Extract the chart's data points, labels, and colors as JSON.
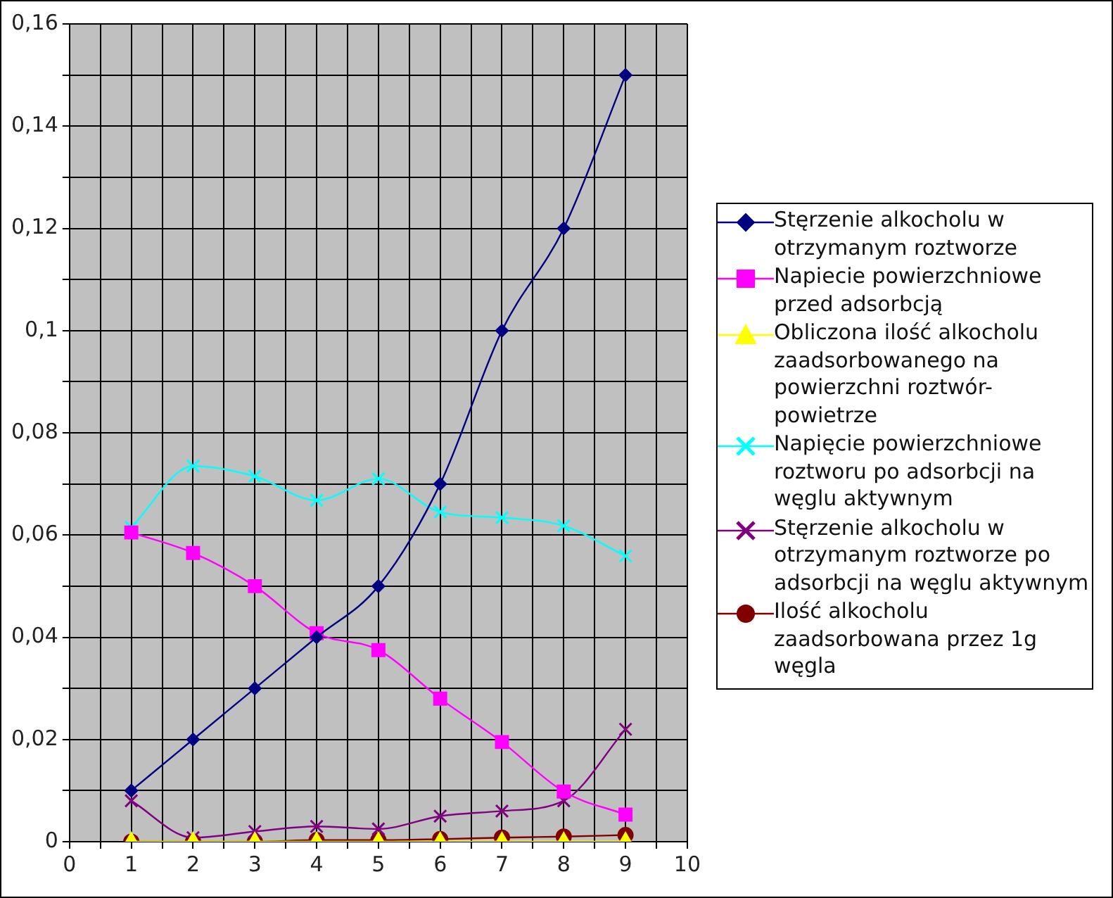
{
  "chart_data": {
    "type": "line",
    "x": [
      1,
      2,
      3,
      4,
      5,
      6,
      7,
      8,
      9
    ],
    "xlim": [
      0,
      10
    ],
    "xticks": [
      0,
      {
        "value": 0.5,
        "label": null
      },
      1,
      {
        "value": 1.5,
        "label": null
      },
      2,
      {
        "value": 2.5,
        "label": null
      },
      3,
      {
        "value": 3.5,
        "label": null
      },
      4,
      {
        "value": 4.5,
        "label": null
      },
      5,
      {
        "value": 5.5,
        "label": null
      },
      6,
      {
        "value": 6.5,
        "label": null
      },
      7,
      {
        "value": 7.5,
        "label": null
      },
      8,
      {
        "value": 8.5,
        "label": null
      },
      9,
      {
        "value": 9.5,
        "label": null
      },
      10
    ],
    "ylim": [
      0,
      0.16
    ],
    "yticks": [
      {
        "value": 0,
        "label": "0"
      },
      {
        "value": 0.01,
        "label": null
      },
      {
        "value": 0.02,
        "label": "0,02"
      },
      {
        "value": 0.03,
        "label": null
      },
      {
        "value": 0.04,
        "label": "0,04"
      },
      {
        "value": 0.05,
        "label": null
      },
      {
        "value": 0.06,
        "label": "0,06"
      },
      {
        "value": 0.07,
        "label": null
      },
      {
        "value": 0.08,
        "label": "0,08"
      },
      {
        "value": 0.09,
        "label": null
      },
      {
        "value": 0.1,
        "label": "0,1"
      },
      {
        "value": 0.11,
        "label": null
      },
      {
        "value": 0.12,
        "label": "0,12"
      },
      {
        "value": 0.13,
        "label": null
      },
      {
        "value": 0.14,
        "label": "0,14"
      },
      {
        "value": 0.15,
        "label": null
      },
      {
        "value": 0.16,
        "label": "0,16"
      }
    ],
    "grid": true,
    "legend": "right",
    "series": [
      {
        "name": "Stęrzenie alkocholu w otrzymanym roztworze",
        "color": "#000080",
        "marker": "diamond",
        "values": [
          0.01,
          0.02,
          0.03,
          0.04,
          0.05,
          0.07,
          0.1,
          0.12,
          0.15
        ]
      },
      {
        "name": "Napiecie powierzchniowe przed adsorbcją",
        "color": "#ff00ff",
        "marker": "square",
        "values": [
          0.0605,
          0.0565,
          0.05,
          0.0408,
          0.0375,
          0.028,
          0.0195,
          0.0098,
          0.0053
        ]
      },
      {
        "name": "Obliczona ilość alkocholu zaadsorbowanego na powierzchni roztwór-powietrze",
        "color": "#ffff00",
        "marker": "triangle",
        "values": [
          0,
          0,
          0,
          0,
          0,
          0,
          0,
          0,
          0
        ]
      },
      {
        "name": "Napięcie powierzchniowe roztworu po adsorbcji na węglu aktywnym",
        "color": "#00ffff",
        "marker": "cross",
        "values": [
          0.0615,
          0.0735,
          0.0715,
          0.0668,
          0.071,
          0.0645,
          0.0634,
          0.0618,
          0.0559
        ]
      },
      {
        "name": "Stęrzenie alkocholu w otrzymanym roztworze po adsorbcji na węglu aktywnym",
        "color": "#800080",
        "marker": "cross",
        "values": [
          0.008,
          0.0008,
          0.002,
          0.003,
          0.0025,
          0.005,
          0.006,
          0.008,
          0.022
        ]
      },
      {
        "name": "Ilość alkocholu zaadsorbowana przez 1g węgla",
        "color": "#800000",
        "marker": "circle",
        "values": [
          0,
          0,
          0,
          0.0003,
          0.0003,
          0.0005,
          0.0008,
          0.001,
          0.0013
        ]
      }
    ]
  }
}
